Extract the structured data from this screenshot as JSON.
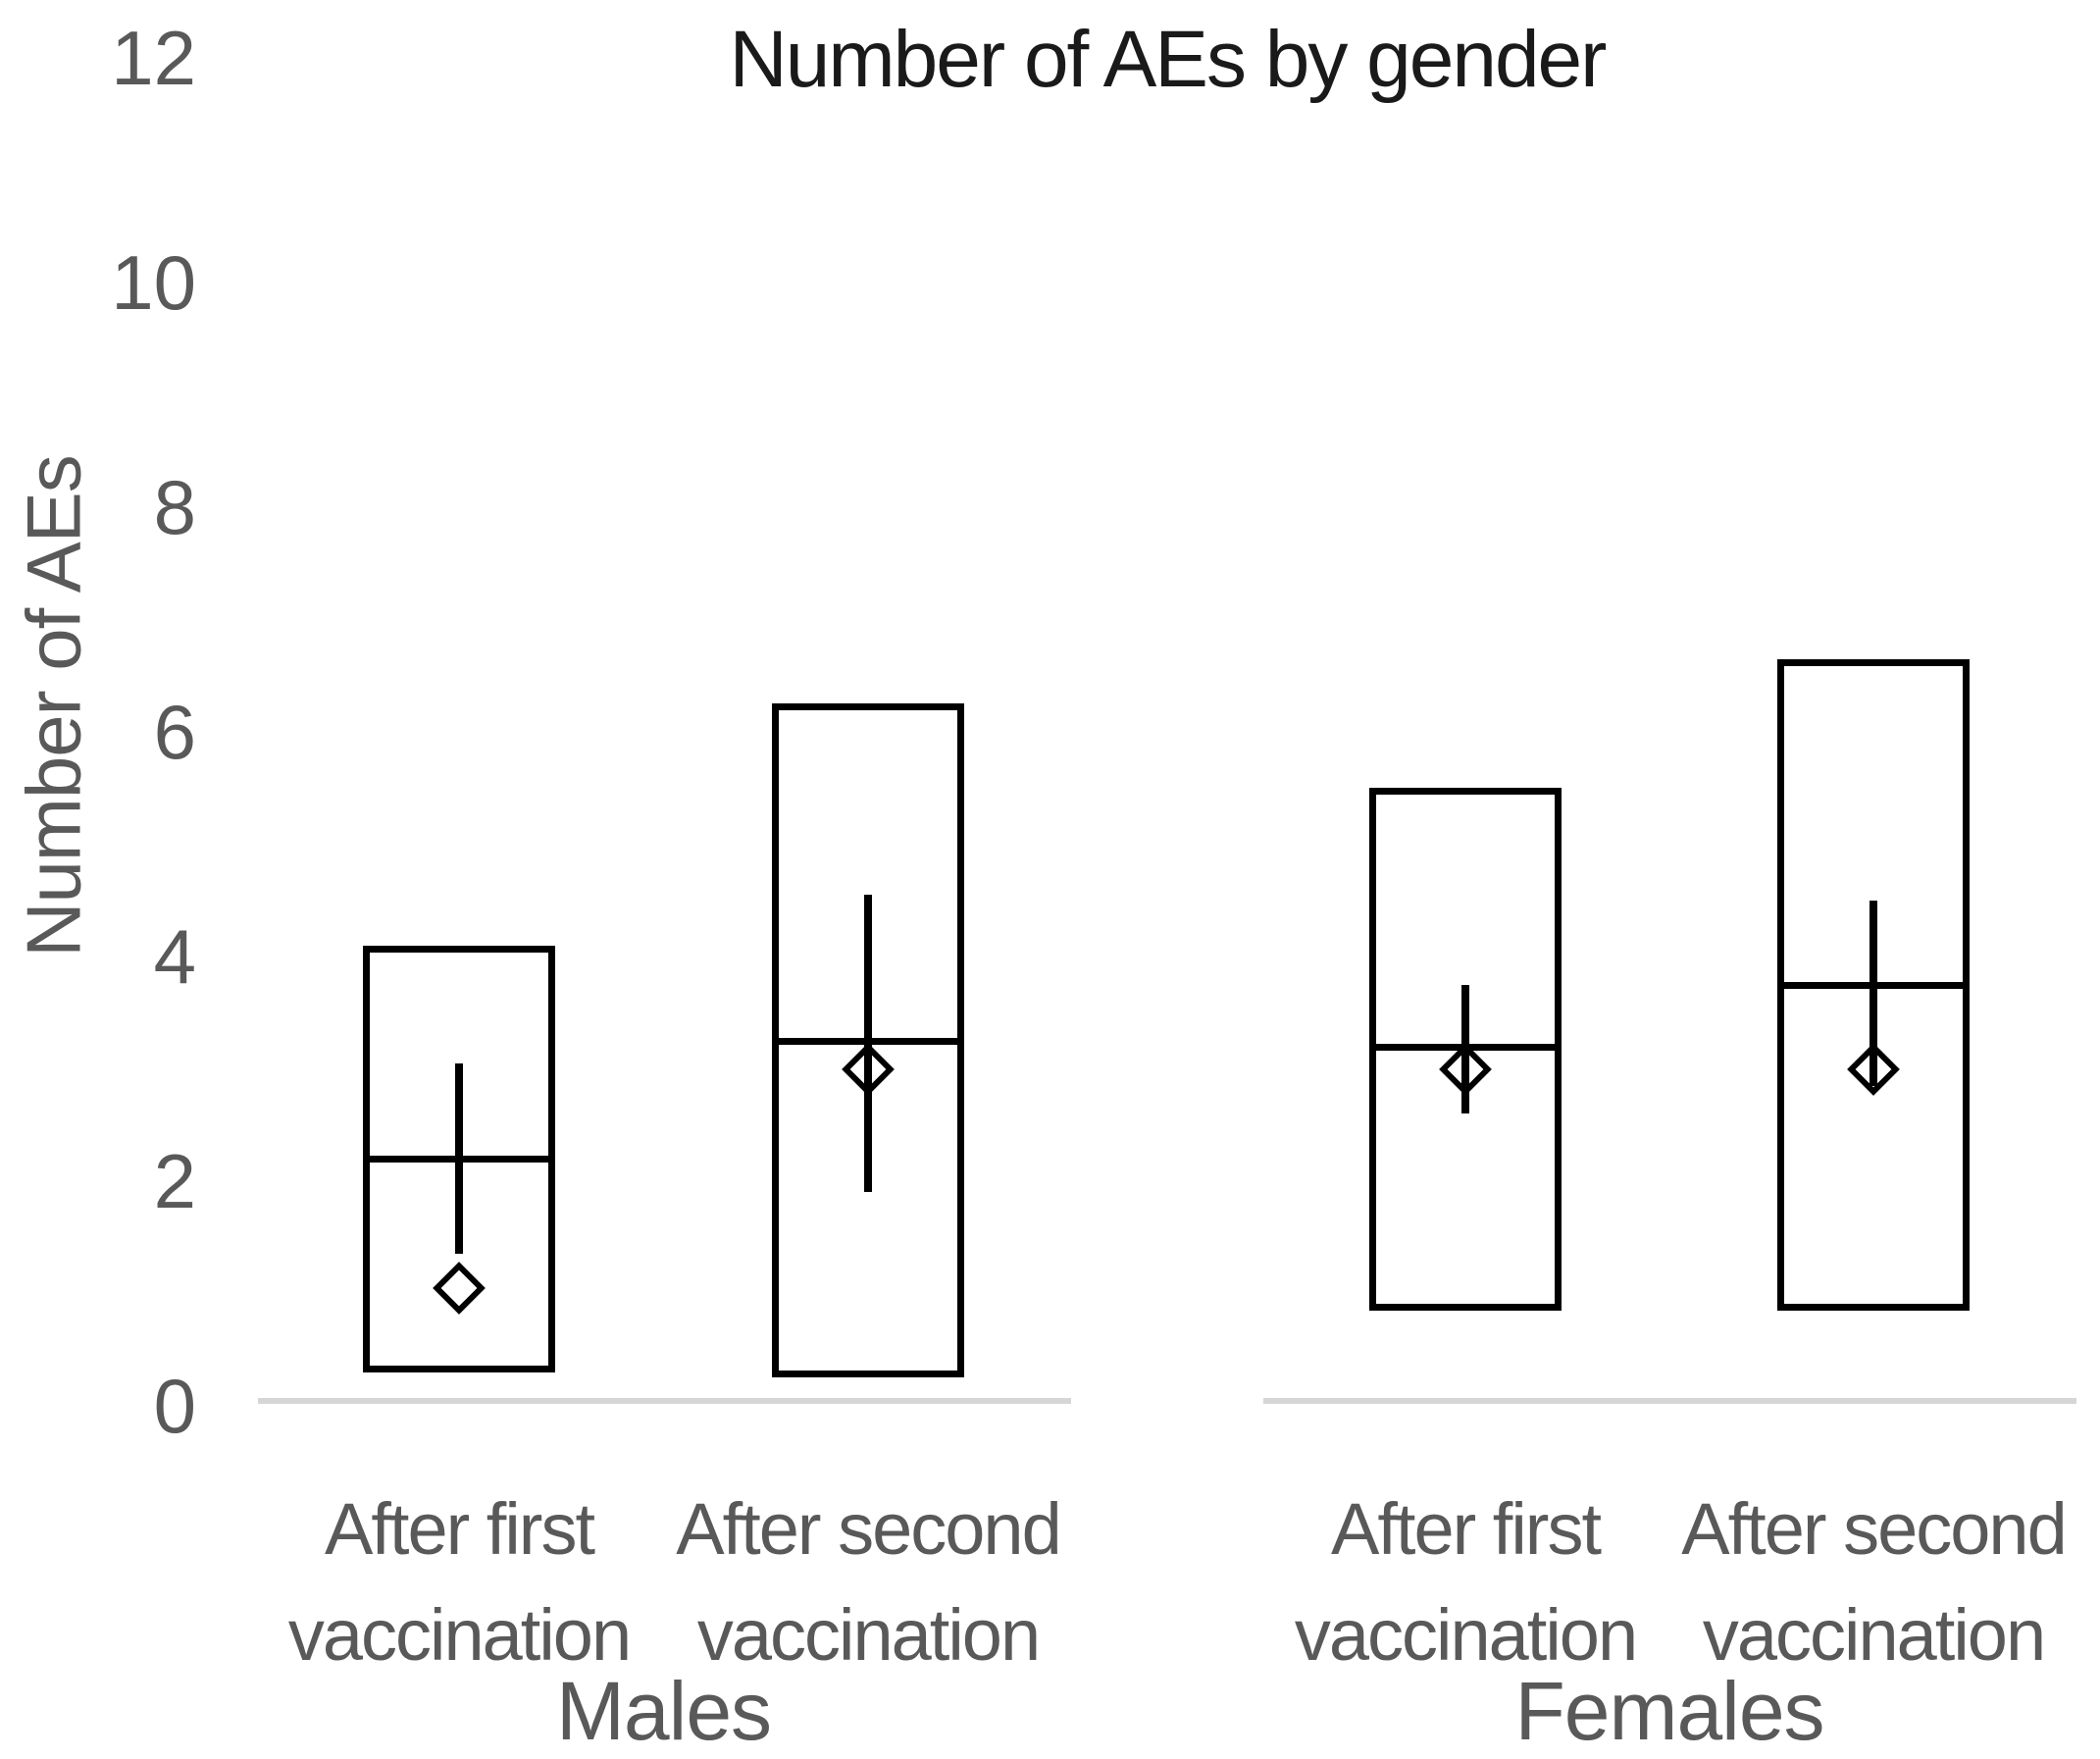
{
  "chart_data": {
    "type": "boxplot",
    "title": "Number of AEs by gender",
    "ylabel": "Number of AEs",
    "xlabel": "",
    "ylim": [
      0,
      12
    ],
    "yticks": [
      0,
      2,
      4,
      6,
      8,
      10,
      12
    ],
    "grid": false,
    "legend": "none",
    "marker_meaning": "diamond-marker",
    "groups": [
      {
        "label": "Males",
        "categories": [
          {
            "label": "After first vaccination",
            "box_low": 0.3,
            "box_high": 4.1,
            "median": 2.2,
            "whisker_low": 1.35,
            "whisker_high": 3.05,
            "mean": 1.05
          },
          {
            "label": "After second vaccination",
            "box_low": 0.25,
            "box_high": 6.25,
            "median": 3.25,
            "whisker_low": 1.9,
            "whisker_high": 4.55,
            "mean": 3.0
          }
        ]
      },
      {
        "label": "Females",
        "categories": [
          {
            "label": "After first vaccination",
            "box_low": 0.85,
            "box_high": 5.5,
            "median": 3.2,
            "whisker_low": 2.6,
            "whisker_high": 3.75,
            "mean": 3.0
          },
          {
            "label": "After second vaccination",
            "box_low": 0.85,
            "box_high": 6.65,
            "median": 3.75,
            "whisker_low": 2.85,
            "whisker_high": 4.5,
            "mean": 3.0
          }
        ]
      }
    ],
    "colors": {
      "box_stroke": "#000000",
      "axis_text": "#595959",
      "title_text": "#1a1a1a",
      "baseline": "#d6d6d6"
    }
  }
}
